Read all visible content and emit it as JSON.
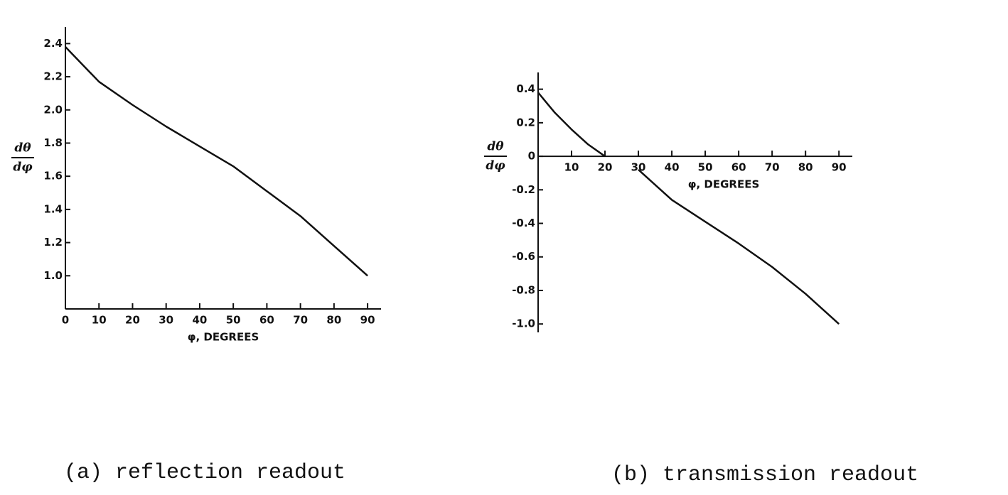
{
  "chart_data": [
    {
      "type": "line",
      "caption": "(a) reflection readout",
      "xlabel": "φ, DEGREES",
      "ylabel": [
        "dθ",
        "dφ"
      ],
      "x": [
        0,
        10,
        20,
        30,
        40,
        50,
        60,
        70,
        80,
        90
      ],
      "series": [
        {
          "color": "#111111",
          "values": [
            2.38,
            2.17,
            2.03,
            1.9,
            1.78,
            1.66,
            1.51,
            1.36,
            1.18,
            1.0
          ]
        }
      ],
      "xlim": [
        0,
        94
      ],
      "ylim": [
        0.8,
        2.5
      ],
      "xticks": [
        0,
        10,
        20,
        30,
        40,
        50,
        60,
        70,
        80,
        90
      ],
      "yticks": [
        {
          "value": 1,
          "label": "1.0"
        },
        1.2,
        1.4,
        1.6,
        1.8,
        {
          "value": 2,
          "label": "2.0"
        },
        2.2,
        2.4
      ]
    },
    {
      "type": "line",
      "caption": "(b) transmission readout",
      "xlabel": "φ, DEGREES",
      "ylabel": [
        "dθ",
        "dφ"
      ],
      "x": [
        0,
        5,
        10,
        15,
        20,
        25,
        30,
        40,
        50,
        60,
        70,
        80,
        90
      ],
      "series": [
        {
          "color": "#111111",
          "values": [
            0.38,
            0.26,
            0.16,
            0.07,
            0.0,
            null,
            -0.08,
            -0.26,
            -0.39,
            -0.52,
            -0.66,
            -0.82,
            -1.0
          ]
        }
      ],
      "xlim": [
        0,
        94
      ],
      "ylim": [
        -1.05,
        0.5
      ],
      "xticks": [
        10,
        20,
        30,
        40,
        50,
        60,
        70,
        80,
        90
      ],
      "yticks": [
        {
          "value": -1,
          "label": "-1.0"
        },
        -0.8,
        -0.6,
        -0.4,
        -0.2,
        0,
        0.2,
        0.4
      ]
    }
  ]
}
